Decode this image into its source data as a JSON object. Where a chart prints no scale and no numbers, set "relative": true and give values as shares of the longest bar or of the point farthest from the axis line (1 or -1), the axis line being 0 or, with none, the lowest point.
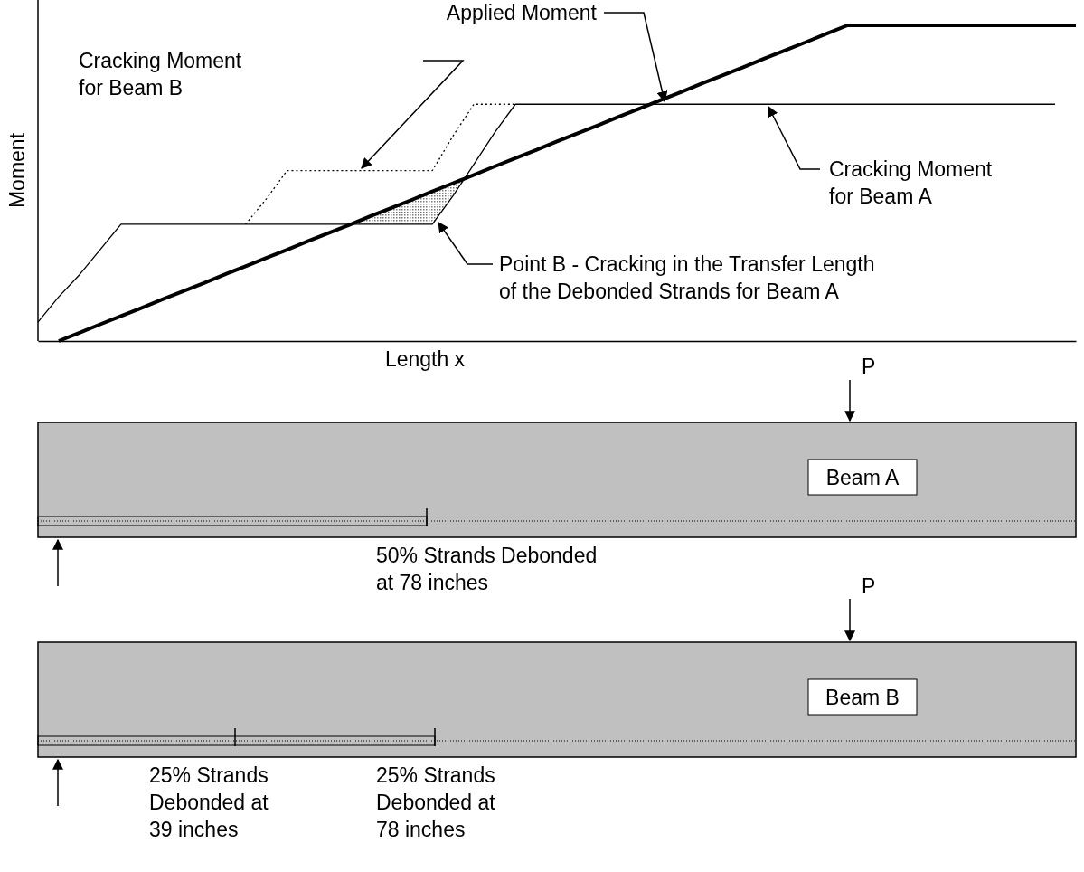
{
  "chart_data": {
    "type": "line",
    "relative": true,
    "xlabel": "Length x",
    "ylabel": "Moment",
    "tick_labels": false,
    "categories": [
      null,
      null,
      null,
      null,
      null,
      null,
      null,
      null,
      null,
      null,
      null,
      null,
      null,
      null,
      null,
      null,
      null,
      null,
      null,
      null,
      null,
      null,
      null,
      null,
      null,
      null,
      null,
      null,
      null,
      null,
      null,
      null,
      null,
      null,
      null,
      null,
      null,
      null,
      null,
      null,
      null,
      null,
      null,
      null,
      null,
      null,
      null,
      null,
      null,
      null,
      null
    ],
    "series": [
      {
        "color": "#000000",
        "line_style": "solid",
        "values": [
          0.06,
          0.14,
          0.21,
          0.29,
          0.37,
          0.37,
          0.37,
          0.37,
          0.37,
          0.37,
          0.37,
          0.37,
          0.37,
          0.37,
          0.37,
          0.37,
          0.37,
          0.37,
          0.37,
          0.37,
          0.46,
          0.56,
          0.66,
          0.75,
          0.75,
          0.75,
          0.75,
          0.75,
          0.75,
          0.75,
          0.75,
          0.75,
          0.75,
          0.75,
          0.75,
          0.75,
          0.75,
          0.75,
          0.75,
          0.75,
          0.75,
          0.75,
          0.75,
          0.75,
          0.75,
          0.75,
          0.75,
          0.75,
          0.75,
          0.75,
          null
        ]
      },
      {
        "color": "#000000",
        "line_style": "dotted",
        "values": [
          null,
          null,
          null,
          null,
          null,
          null,
          null,
          null,
          null,
          null,
          0.37,
          0.45,
          0.54,
          0.54,
          0.54,
          0.54,
          0.54,
          0.54,
          0.54,
          0.54,
          0.65,
          0.75,
          0.75,
          0.75,
          null,
          null,
          null,
          null,
          null,
          null,
          null,
          null,
          null,
          null,
          null,
          null,
          null,
          null,
          null,
          null,
          null,
          null,
          null,
          null,
          null,
          null,
          null,
          null,
          null,
          null,
          null
        ]
      },
      {
        "color": "#000000",
        "line_style": "solid",
        "values": [
          null,
          0,
          0.026,
          0.053,
          0.079,
          0.105,
          0.132,
          0.158,
          0.184,
          0.211,
          0.237,
          0.263,
          0.289,
          0.316,
          0.342,
          0.368,
          0.395,
          0.421,
          0.447,
          0.474,
          0.5,
          0.526,
          0.553,
          0.579,
          0.605,
          0.632,
          0.658,
          0.684,
          0.711,
          0.737,
          0.763,
          0.789,
          0.816,
          0.842,
          0.868,
          0.895,
          0.921,
          0.947,
          0.974,
          1,
          1,
          1,
          1,
          1,
          1,
          1,
          1,
          1,
          1,
          1,
          1
        ]
      }
    ],
    "annotations": [
      "Applied Moment",
      "Cracking Moment\nfor Beam B",
      "Cracking Moment\nfor Beam A",
      "Point B - Cracking in the Transfer Length\nof the Debonded Strands for Beam A",
      "P",
      "Beam A",
      "50% Strands Debonded\nat 78 inches",
      "P",
      "Beam B",
      "25% Strands\nDebonded at\n39 inches",
      "25% Strands\nDebonded at\n78 inches"
    ]
  }
}
